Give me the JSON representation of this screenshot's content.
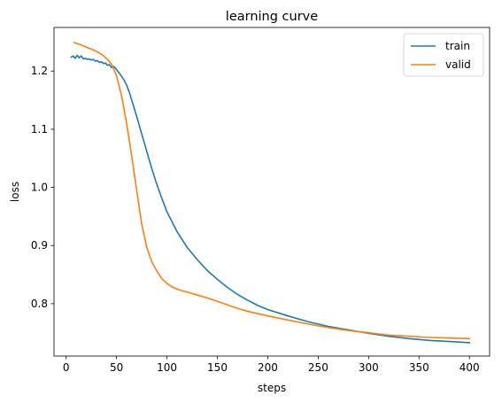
{
  "chart_data": {
    "type": "line",
    "title": "learning curve",
    "xlabel": "steps",
    "ylabel": "loss",
    "xlim": [
      -12,
      420
    ],
    "ylim": [
      0.71,
      1.275
    ],
    "xticks": [
      0,
      50,
      100,
      150,
      200,
      250,
      300,
      350,
      400
    ],
    "yticks": [
      0.8,
      0.9,
      1.0,
      1.1,
      1.2
    ],
    "ytick_labels": [
      "0.8",
      "0.9",
      "1.0",
      "1.1",
      "1.2"
    ],
    "legend_position": "top-right",
    "grid": false,
    "series": [
      {
        "name": "train",
        "color": "#1f77b4",
        "x": [
          5,
          7,
          9,
          11,
          13,
          15,
          17,
          19,
          21,
          23,
          25,
          27,
          29,
          31,
          33,
          35,
          37,
          39,
          41,
          43,
          45,
          47,
          49,
          51,
          53,
          55,
          57,
          60,
          63,
          66,
          70,
          75,
          80,
          85,
          90,
          95,
          100,
          110,
          120,
          130,
          140,
          150,
          160,
          170,
          180,
          190,
          200,
          220,
          240,
          260,
          280,
          300,
          320,
          340,
          360,
          380,
          400
        ],
        "y": [
          1.224,
          1.226,
          1.222,
          1.227,
          1.223,
          1.226,
          1.221,
          1.222,
          1.22,
          1.221,
          1.219,
          1.22,
          1.217,
          1.218,
          1.215,
          1.216,
          1.213,
          1.214,
          1.21,
          1.211,
          1.206,
          1.208,
          1.205,
          1.2,
          1.196,
          1.191,
          1.186,
          1.176,
          1.162,
          1.145,
          1.122,
          1.092,
          1.062,
          1.032,
          1.005,
          0.981,
          0.958,
          0.924,
          0.897,
          0.876,
          0.857,
          0.842,
          0.828,
          0.816,
          0.806,
          0.797,
          0.79,
          0.779,
          0.769,
          0.761,
          0.755,
          0.749,
          0.744,
          0.74,
          0.737,
          0.735,
          0.733
        ]
      },
      {
        "name": "valid",
        "color": "#ff7f0e",
        "x": [
          8,
          15,
          20,
          25,
          30,
          35,
          40,
          45,
          50,
          55,
          60,
          65,
          70,
          75,
          80,
          85,
          90,
          95,
          100,
          105,
          110,
          120,
          130,
          140,
          150,
          160,
          170,
          180,
          190,
          200,
          220,
          240,
          260,
          280,
          300,
          320,
          340,
          360,
          380,
          400
        ],
        "y": [
          1.249,
          1.245,
          1.241,
          1.238,
          1.234,
          1.229,
          1.222,
          1.212,
          1.192,
          1.158,
          1.11,
          1.055,
          0.995,
          0.937,
          0.897,
          0.872,
          0.856,
          0.843,
          0.835,
          0.829,
          0.825,
          0.82,
          0.815,
          0.81,
          0.804,
          0.798,
          0.792,
          0.787,
          0.783,
          0.779,
          0.772,
          0.765,
          0.759,
          0.754,
          0.75,
          0.746,
          0.744,
          0.742,
          0.741,
          0.74
        ]
      }
    ]
  }
}
